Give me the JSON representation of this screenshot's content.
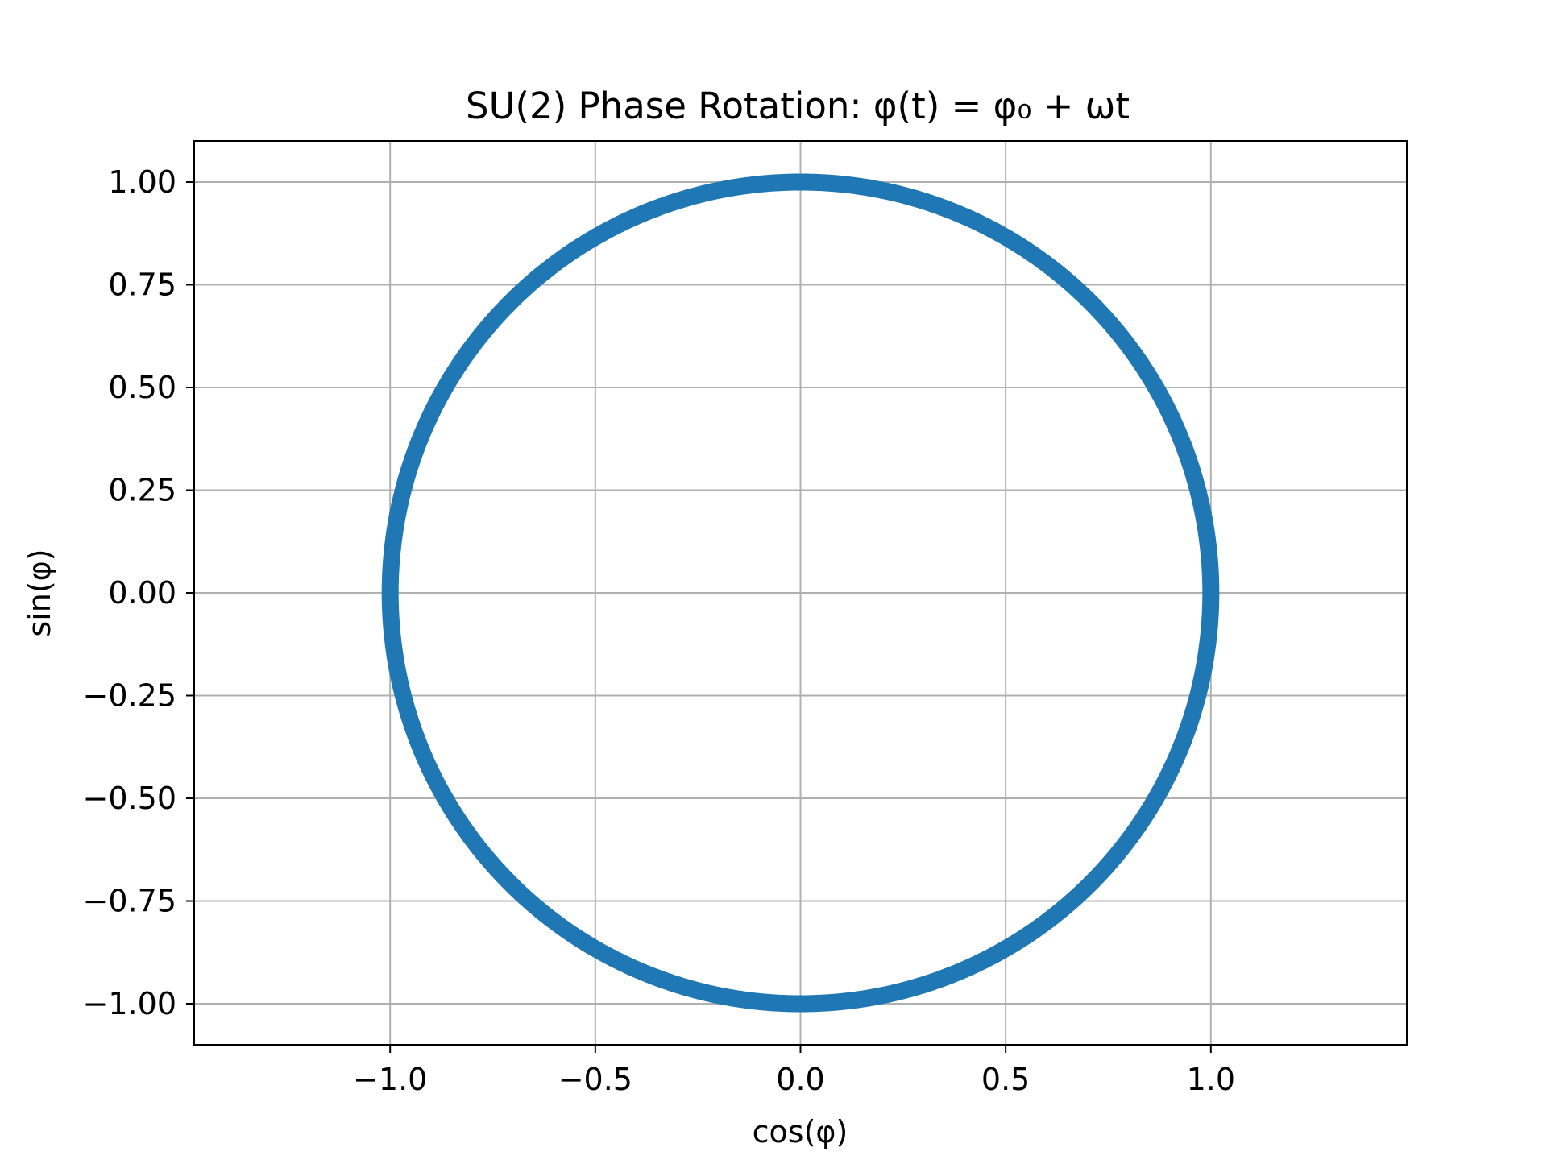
{
  "chart_data": {
    "type": "line",
    "title": "SU(2) Phase Rotation: φ(t) = φ₀ + ωt",
    "xlabel": "cos(φ)",
    "ylabel": "sin(φ)",
    "xlim": [
      -1.4775,
      1.4775
    ],
    "ylim": [
      -1.1,
      1.1
    ],
    "xticks": [
      -1.0,
      -0.5,
      0.0,
      0.5,
      1.0
    ],
    "xtick_labels": [
      "−1.0",
      "−0.5",
      "0.0",
      "0.5",
      "1.0"
    ],
    "yticks": [
      1.0,
      0.75,
      0.5,
      0.25,
      0.0,
      -0.25,
      -0.5,
      -0.75,
      -1.0
    ],
    "ytick_labels": [
      "1.00",
      "0.75",
      "0.50",
      "0.25",
      "0.00",
      "−0.25",
      "−0.50",
      "−0.75",
      "−1.00"
    ],
    "grid": true,
    "series": [
      {
        "curve": "x = cos(φ), y = sin(φ)",
        "phi_range": [
          0,
          6.283185307179586
        ],
        "color": "#1f77b4"
      }
    ]
  }
}
